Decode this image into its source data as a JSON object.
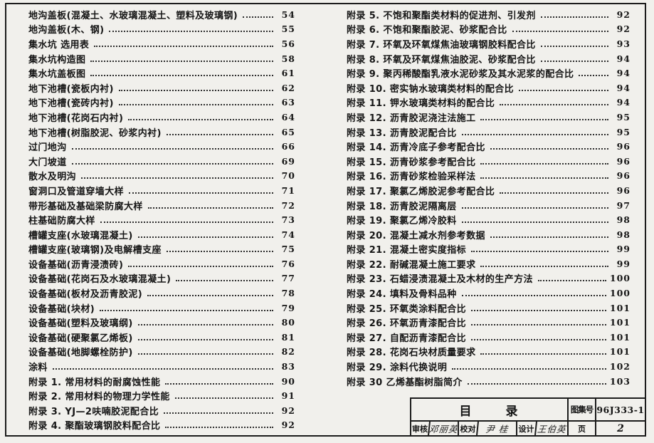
{
  "colors": {
    "paper": "#f1f0ec",
    "ink": "#1c1c1c"
  },
  "titleblock": {
    "doc_title": "目 录",
    "atlas_label": "图集号",
    "atlas_number": "96J333-1",
    "review_label": "审核",
    "reviewer": "邓丽英",
    "check_label": "校对",
    "checker": "尹 桂",
    "design_label": "设计",
    "designer": "王伯英",
    "page_label": "页",
    "page_number": "2"
  },
  "toc": {
    "left_column": [
      {
        "title": "地沟盖板(混凝土、水玻璃混凝土、塑料及玻璃钢)",
        "page": "54"
      },
      {
        "title": "地沟盖板(木、钢)",
        "page": "55"
      },
      {
        "title": "集水坑 选用表",
        "page": "56"
      },
      {
        "title": "集水坑构造图",
        "page": "58"
      },
      {
        "title": "集水坑盖板图",
        "page": "61"
      },
      {
        "title": "地下池槽(瓷板内衬)",
        "page": "62"
      },
      {
        "title": "地下池槽(瓷砖内衬)",
        "page": "63"
      },
      {
        "title": "地下池槽(花岗石内衬)",
        "page": "64"
      },
      {
        "title": "地下池槽(树脂胶泥、砂浆内衬)",
        "page": "65"
      },
      {
        "title": "过门地沟",
        "page": "66"
      },
      {
        "title": "大门坡道",
        "page": "69"
      },
      {
        "title": "散水及明沟",
        "page": "70"
      },
      {
        "title": "窗洞口及管道穿墙大样",
        "page": "71"
      },
      {
        "title": "带形基础及基础梁防腐大样",
        "page": "72"
      },
      {
        "title": "柱基础防腐大样",
        "page": "73"
      },
      {
        "title": "槽罐支座(水玻璃混凝土)",
        "page": "74"
      },
      {
        "title": "槽罐支座(玻璃钢)及电解槽支座",
        "page": "75"
      },
      {
        "title": "设备基础(沥青浸渍砖)",
        "page": "76"
      },
      {
        "title": "设备基础(花岗石及水玻璃混凝土)",
        "page": "77"
      },
      {
        "title": "设备基础(板材及沥青胶泥)",
        "page": "78"
      },
      {
        "title": "设备基础(块材)",
        "page": "79"
      },
      {
        "title": "设备基础(塑料及玻璃纲)",
        "page": "80"
      },
      {
        "title": "设备基础(硬聚氯乙烯板)",
        "page": "81"
      },
      {
        "title": "设备基础(地脚螺栓防护)",
        "page": "82"
      },
      {
        "title": "涂料",
        "page": "83"
      },
      {
        "title": "附录 1. 常用材料的耐腐蚀性能",
        "page": "90"
      },
      {
        "title": "附录 2. 常用材料的物理力学性能",
        "page": "91"
      },
      {
        "title": "附录 3. YJ—2呋喃胶泥配合比",
        "page": "92"
      },
      {
        "title": "附录 4. 聚酯玻璃钢胶料配合比",
        "page": "92"
      }
    ],
    "right_column": [
      {
        "title": "附录 5. 不饱和聚酯类材料的促进剂、引发剂",
        "page": "92"
      },
      {
        "title": "附录 6. 不饱和聚酯胶泥、砂浆配合比",
        "page": "92"
      },
      {
        "title": "附录 7. 环氧及环氧煤焦油玻璃钢胶料配合比",
        "page": "93"
      },
      {
        "title": "附录 8. 环氧及环氧煤焦油胶泥、砂浆配合比",
        "page": "94"
      },
      {
        "title": "附录 9. 聚丙稀酸酯乳液水泥砂浆及其水泥浆的配合比",
        "page": "94"
      },
      {
        "title": "附录 10. 密实钠水玻璃类材料的配合比",
        "page": "94"
      },
      {
        "title": "附录 11. 钾水玻璃类材料的配合比",
        "page": "94"
      },
      {
        "title": "附录 12. 沥青胶泥浇注法施工",
        "page": "95"
      },
      {
        "title": "附录 13. 沥青胶泥配合比",
        "page": "95"
      },
      {
        "title": "附录 14. 沥青冷底子参考配合比",
        "page": "96"
      },
      {
        "title": "附录 15. 沥青砂浆参考配合比",
        "page": "96"
      },
      {
        "title": "附录 16. 沥青砂浆检验采样法",
        "page": "96"
      },
      {
        "title": "附录 17. 聚氯乙烯胶泥参考配合比",
        "page": "96"
      },
      {
        "title": "附录 18. 沥青胶泥隔离层",
        "page": "97"
      },
      {
        "title": "附录 19. 聚氯乙烯冷胶料",
        "page": "98"
      },
      {
        "title": "附录 20. 混凝土减水剂参考数据",
        "page": "98"
      },
      {
        "title": "附录 21. 混凝土密实度指标",
        "page": "99"
      },
      {
        "title": "附录 22. 耐碱混凝土施工要求",
        "page": "99"
      },
      {
        "title": "附录 23. 石蜡浸渍混凝土及木材的生产方法",
        "page": "100"
      },
      {
        "title": "附录 24. 填料及骨料品种",
        "page": "100"
      },
      {
        "title": "附录 25. 环氧类涂料配合比",
        "page": "101"
      },
      {
        "title": "附录 26. 环氧沥青漆配合比",
        "page": "101"
      },
      {
        "title": "附录 27. 自配沥青漆配合比",
        "page": "101"
      },
      {
        "title": "附录 28. 花岗石块材质量要求",
        "page": "101"
      },
      {
        "title": "附录 29. 涂料代换说明",
        "page": "102"
      },
      {
        "title": "附录 30 乙烯基酯树脂简介",
        "page": "103"
      }
    ]
  }
}
